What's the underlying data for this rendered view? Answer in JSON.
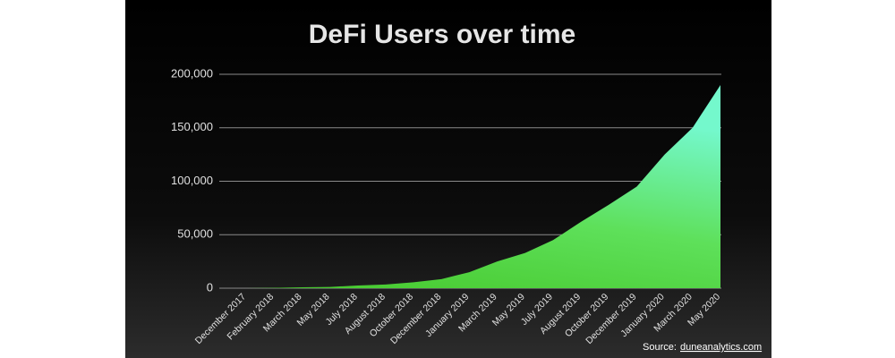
{
  "chart_data": {
    "type": "area",
    "title": "DeFi Users over time",
    "categories": [
      "December 2017",
      "February 2018",
      "March 2018",
      "May 2018",
      "July 2018",
      "August 2018",
      "October 2018",
      "December 2018",
      "January 2019",
      "March 2019",
      "May 2019",
      "July 2019",
      "August 2019",
      "October 2019",
      "December 2019",
      "January 2020",
      "March 2020",
      "May 2020"
    ],
    "values": [
      0,
      300,
      800,
      1200,
      2500,
      3500,
      5500,
      8500,
      15000,
      25000,
      33000,
      45000,
      62000,
      78000,
      95000,
      125000,
      150000,
      190000
    ],
    "ylim": [
      0,
      200000
    ],
    "yticks": [
      0,
      {
        "value": 50000,
        "label": "50,000"
      },
      {
        "value": 100000,
        "label": "100,000"
      },
      {
        "value": 150000,
        "label": "150,000"
      },
      {
        "value": 200000,
        "label": "200,000"
      }
    ],
    "grid": true,
    "color": "#52d33a",
    "source_prefix": "Source:",
    "source_link": "duneanalytics.com"
  }
}
